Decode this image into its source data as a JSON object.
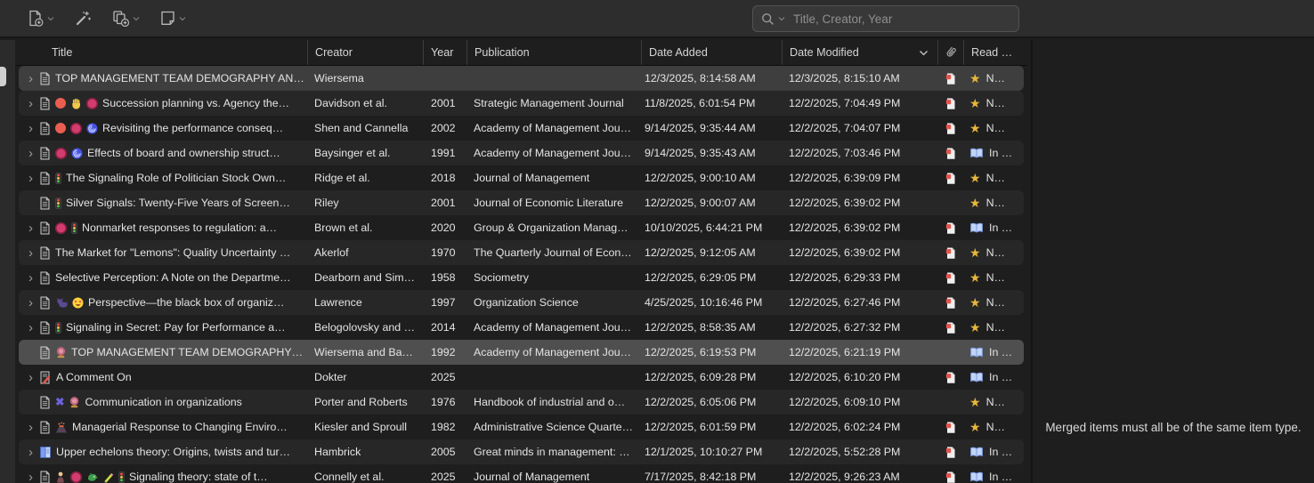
{
  "toolbar": {
    "buttons": [
      {
        "name": "new-item-button",
        "icon": "new-item-icon",
        "hasChevron": true
      },
      {
        "name": "add-by-identifier-button",
        "icon": "magic-wand-icon",
        "hasChevron": false
      },
      {
        "name": "add-attachment-button",
        "icon": "add-attachment-icon",
        "hasChevron": true
      },
      {
        "name": "new-note-button",
        "icon": "new-note-icon",
        "hasChevron": true
      }
    ],
    "search": {
      "placeholder": "Title, Creator, Year"
    }
  },
  "table": {
    "columns": {
      "title": "Title",
      "creator": "Creator",
      "year": "Year",
      "publication": "Publication",
      "date_added": "Date Added",
      "date_modified": "Date Modified",
      "attachment_icon": "paperclip-icon",
      "read": "Read …"
    },
    "sort_column": "date_modified",
    "rows": [
      {
        "chevron": true,
        "icon": "document",
        "tags": [],
        "title": "TOP MANAGEMENT TEAM DEMOGRAPHY AN…",
        "creator": "Wiersema",
        "year": "",
        "publication": "",
        "date_added": "12/3/2025, 8:14:58 AM",
        "date_modified": "12/3/2025, 8:15:10 AM",
        "pdf": true,
        "read": {
          "icon": "star",
          "label": "N…"
        },
        "state": "selected"
      },
      {
        "chevron": true,
        "icon": "document",
        "tags": [
          "dot-red",
          "hand",
          "dot-magenta"
        ],
        "title": "Succession planning vs. Agency the…",
        "creator": "Davidson et al.",
        "year": "2001",
        "publication": "Strategic Management Journal",
        "date_added": "11/8/2025, 6:01:54 PM",
        "date_modified": "12/2/2025, 7:04:49 PM",
        "pdf": true,
        "read": {
          "icon": "star",
          "label": "N…"
        },
        "state": ""
      },
      {
        "chevron": true,
        "icon": "document",
        "tags": [
          "dot-red",
          "dot-magenta",
          "cyclone"
        ],
        "title": "Revisiting the performance conseq…",
        "creator": "Shen and Cannella",
        "year": "2002",
        "publication": "Academy of Management Jou…",
        "date_added": "9/14/2025, 9:35:44 AM",
        "date_modified": "12/2/2025, 7:04:07 PM",
        "pdf": true,
        "read": {
          "icon": "star",
          "label": "N…"
        },
        "state": ""
      },
      {
        "chevron": true,
        "icon": "document",
        "tags": [
          "dot-magenta",
          "cyclone"
        ],
        "title": "Effects of board and ownership struct…",
        "creator": "Baysinger et al.",
        "year": "1991",
        "publication": "Academy of Management Jou…",
        "date_added": "9/14/2025, 9:35:43 AM",
        "date_modified": "12/2/2025, 7:03:46 PM",
        "pdf": true,
        "read": {
          "icon": "book",
          "label": "In …"
        },
        "state": ""
      },
      {
        "chevron": true,
        "icon": "document",
        "tags": [
          "traffic-light"
        ],
        "title": "The Signaling Role of Politician Stock Own…",
        "creator": "Ridge et al.",
        "year": "2018",
        "publication": "Journal of Management",
        "date_added": "12/2/2025, 9:00:10 AM",
        "date_modified": "12/2/2025, 6:39:09 PM",
        "pdf": true,
        "read": {
          "icon": "star",
          "label": "N…"
        },
        "state": ""
      },
      {
        "chevron": false,
        "icon": "document",
        "tags": [
          "traffic-light"
        ],
        "title": "Silver Signals: Twenty-Five Years of Screen…",
        "creator": "Riley",
        "year": "2001",
        "publication": "Journal of Economic Literature",
        "date_added": "12/2/2025, 9:00:07 AM",
        "date_modified": "12/2/2025, 6:39:02 PM",
        "pdf": false,
        "read": {
          "icon": "star",
          "label": "N…"
        },
        "state": ""
      },
      {
        "chevron": true,
        "icon": "document",
        "tags": [
          "dot-magenta",
          "traffic-light"
        ],
        "title": "Nonmarket responses to regulation: a…",
        "creator": "Brown et al.",
        "year": "2020",
        "publication": "Group & Organization Manag…",
        "date_added": "10/10/2025, 6:44:21 PM",
        "date_modified": "12/2/2025, 6:39:02 PM",
        "pdf": true,
        "read": {
          "icon": "book",
          "label": "In …"
        },
        "state": ""
      },
      {
        "chevron": true,
        "icon": "document",
        "tags": [],
        "title": "The Market for \"Lemons\": Quality Uncertainty …",
        "creator": "Akerlof",
        "year": "1970",
        "publication": "The Quarterly Journal of Econ…",
        "date_added": "12/2/2025, 9:12:05 AM",
        "date_modified": "12/2/2025, 6:39:02 PM",
        "pdf": true,
        "read": {
          "icon": "star",
          "label": "N…"
        },
        "state": ""
      },
      {
        "chevron": true,
        "icon": "document",
        "tags": [],
        "title": "Selective Perception: A Note on the Departme…",
        "creator": "Dearborn and Sim…",
        "year": "1958",
        "publication": "Sociometry",
        "date_added": "12/2/2025, 6:29:05 PM",
        "date_modified": "12/2/2025, 6:29:33 PM",
        "pdf": true,
        "read": {
          "icon": "star",
          "label": "N…"
        },
        "state": ""
      },
      {
        "chevron": true,
        "icon": "document",
        "tags": [
          "cat",
          "star-struck"
        ],
        "title": "Perspective—the black box of organiz…",
        "creator": "Lawrence",
        "year": "1997",
        "publication": "Organization Science",
        "date_added": "4/25/2025, 10:16:46 PM",
        "date_modified": "12/2/2025, 6:27:46 PM",
        "pdf": true,
        "read": {
          "icon": "star",
          "label": "N…"
        },
        "state": ""
      },
      {
        "chevron": true,
        "icon": "document",
        "tags": [
          "traffic-light"
        ],
        "title": "Signaling in Secret: Pay for Performance a…",
        "creator": "Belogolovsky and …",
        "year": "2014",
        "publication": "Academy of Management Jou…",
        "date_added": "12/2/2025, 8:58:35 AM",
        "date_modified": "12/2/2025, 6:27:32 PM",
        "pdf": true,
        "read": {
          "icon": "star",
          "label": "N…"
        },
        "state": ""
      },
      {
        "chevron": false,
        "icon": "document",
        "tags": [
          "crystal-ball"
        ],
        "title": "TOP MANAGEMENT TEAM DEMOGRAPHY…",
        "creator": "Wiersema and Ba…",
        "year": "1992",
        "publication": "Academy of Management Jou…",
        "date_added": "12/2/2025, 6:19:53 PM",
        "date_modified": "12/2/2025, 6:21:19 PM",
        "pdf": false,
        "read": {
          "icon": "book",
          "label": "In …"
        },
        "state": "selected-focused"
      },
      {
        "chevron": true,
        "icon": "note",
        "tags": [],
        "title": "A Comment On",
        "creator": "Dokter",
        "year": "2025",
        "publication": "",
        "date_added": "12/2/2025, 6:09:28 PM",
        "date_modified": "12/2/2025, 6:10:20 PM",
        "pdf": true,
        "read": {
          "icon": "book",
          "label": "In …"
        },
        "state": ""
      },
      {
        "chevron": false,
        "icon": "document",
        "tags": [
          "blue-x",
          "crystal-ball"
        ],
        "title": "Communication in organizations",
        "creator": "Porter and Roberts",
        "year": "1976",
        "publication": "Handbook of industrial and o…",
        "date_added": "12/2/2025, 6:05:06 PM",
        "date_modified": "12/2/2025, 6:09:10 PM",
        "pdf": false,
        "read": {
          "icon": "star",
          "label": "N…"
        },
        "state": ""
      },
      {
        "chevron": true,
        "icon": "document",
        "tags": [
          "volcano"
        ],
        "title": "Managerial Response to Changing Enviro…",
        "creator": "Kiesler and Sproull",
        "year": "1982",
        "publication": "Administrative Science Quarte…",
        "date_added": "12/2/2025, 6:01:59 PM",
        "date_modified": "12/2/2025, 6:02:24 PM",
        "pdf": true,
        "read": {
          "icon": "star",
          "label": "N…"
        },
        "state": ""
      },
      {
        "chevron": true,
        "icon": "book-item",
        "tags": [],
        "title": "Upper echelons theory: Origins, twists and tur…",
        "creator": "Hambrick",
        "year": "2005",
        "publication": "Great minds in management: …",
        "date_added": "12/1/2025, 10:10:27 PM",
        "date_modified": "12/2/2025, 5:52:28 PM",
        "pdf": true,
        "read": {
          "icon": "book",
          "label": "In …"
        },
        "state": ""
      },
      {
        "chevron": true,
        "icon": "document",
        "tags": [
          "person",
          "dot-magenta",
          "dragon",
          "pencil",
          "traffic-light"
        ],
        "title": "Signaling theory: state of t…",
        "creator": "Connelly et al.",
        "year": "2025",
        "publication": "Journal of Management",
        "date_added": "7/17/2025, 8:42:18 PM",
        "date_modified": "12/2/2025, 9:26:23 AM",
        "pdf": true,
        "read": {
          "icon": "book",
          "label": "In …"
        },
        "state": ""
      }
    ]
  },
  "right_panel": {
    "message": "Merged items must all be of the same item type."
  },
  "colors": {
    "toolbar_bg": "#2d2d2d",
    "list_bg": "#1e1e1e",
    "row_alt_bg": "#272727",
    "row_selected_bg": "#3e3e3e",
    "row_selected_focused_bg": "#4f4f4f",
    "star_gold": "#e7b73c",
    "pdf_red": "#e2574c",
    "read_book_blue": "#7a9be0",
    "tag_red": "#ea5e52",
    "tag_magenta": "#d23c6e"
  }
}
